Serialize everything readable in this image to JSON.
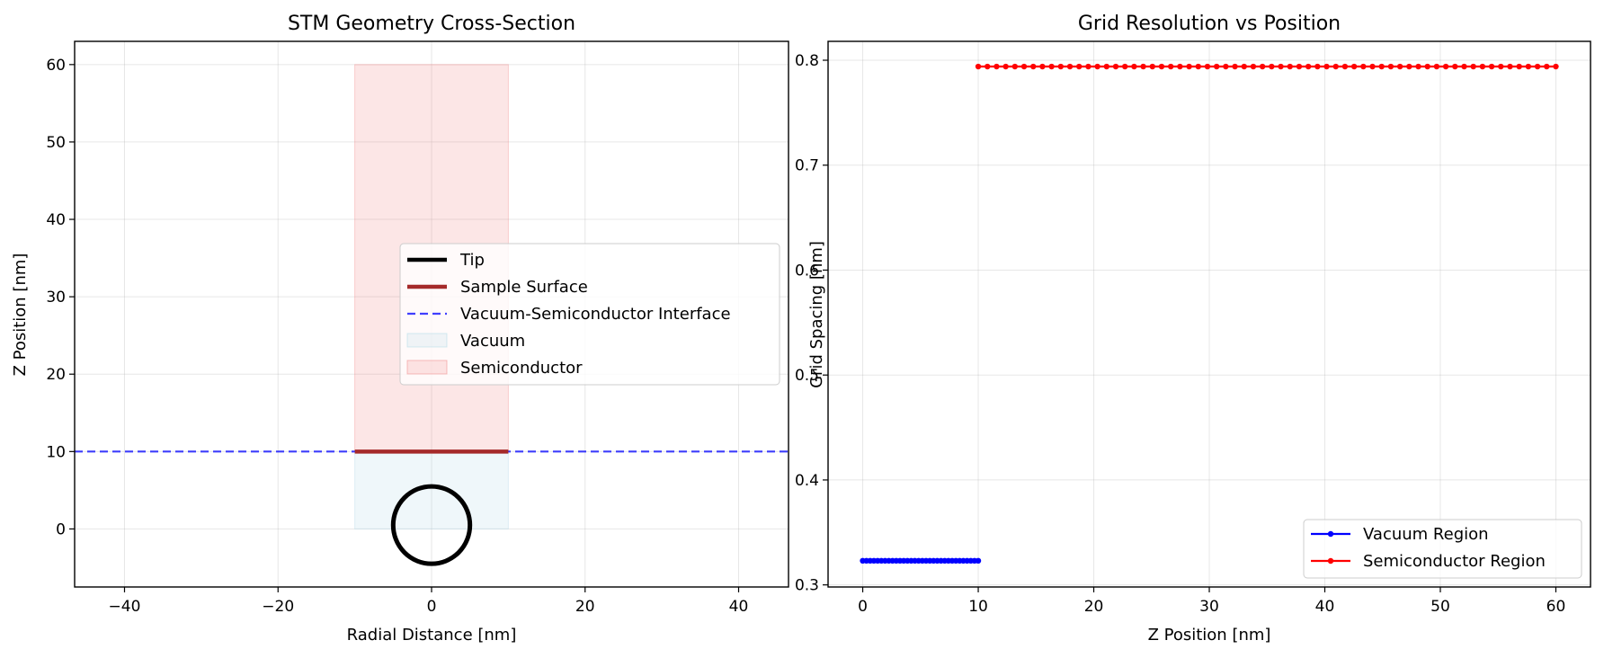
{
  "chart_data": [
    {
      "type": "line",
      "title": "STM Geometry Cross-Section",
      "xlabel": "Radial Distance [nm]",
      "ylabel": "Z Position [nm]",
      "xlim": [
        -46.5,
        46.5
      ],
      "ylim": [
        -7.5,
        63
      ],
      "xticks": [
        -40,
        -20,
        0,
        20,
        40
      ],
      "yticks": [
        0,
        10,
        20,
        30,
        40,
        50,
        60
      ],
      "grid": true,
      "legend_position": "center-right",
      "regions": [
        {
          "name": "Vacuum",
          "x": [
            -10,
            10
          ],
          "y": [
            0,
            10
          ],
          "color": "#add8e6"
        },
        {
          "name": "Semiconductor",
          "x": [
            -10,
            10
          ],
          "y": [
            10,
            60
          ],
          "color": "#f08080"
        }
      ],
      "tip": {
        "name": "Tip",
        "center": [
          0,
          0.5
        ],
        "radius": 5,
        "color": "#000000"
      },
      "sample_surface": {
        "name": "Sample Surface",
        "x": [
          -10,
          10
        ],
        "y": 10,
        "color": "#a52a2a"
      },
      "interface": {
        "name": "Vacuum-Semiconductor Interface",
        "y": 10,
        "color": "#0000ff",
        "style": "dashed"
      },
      "legend": [
        "Tip",
        "Sample Surface",
        "Vacuum-Semiconductor Interface",
        "Vacuum",
        "Semiconductor"
      ]
    },
    {
      "type": "line",
      "title": "Grid Resolution vs Position",
      "xlabel": "Z Position [nm]",
      "ylabel": "Grid Spacing [nm]",
      "xlim": [
        -3,
        63
      ],
      "ylim": [
        0.298,
        0.818
      ],
      "xticks": [
        0,
        10,
        20,
        30,
        40,
        50,
        60
      ],
      "yticks": [
        0.3,
        0.4,
        0.5,
        0.6,
        0.7,
        0.8
      ],
      "grid": true,
      "legend_position": "bottom-right",
      "series": [
        {
          "name": "Vacuum Region",
          "color": "#0000ff",
          "x_start": 0,
          "x_end": 10,
          "points": 32,
          "value": 0.323
        },
        {
          "name": "Semiconductor Region",
          "color": "#ff0000",
          "x_start": 10,
          "x_end": 60,
          "points": 64,
          "value": 0.794
        }
      ]
    }
  ]
}
